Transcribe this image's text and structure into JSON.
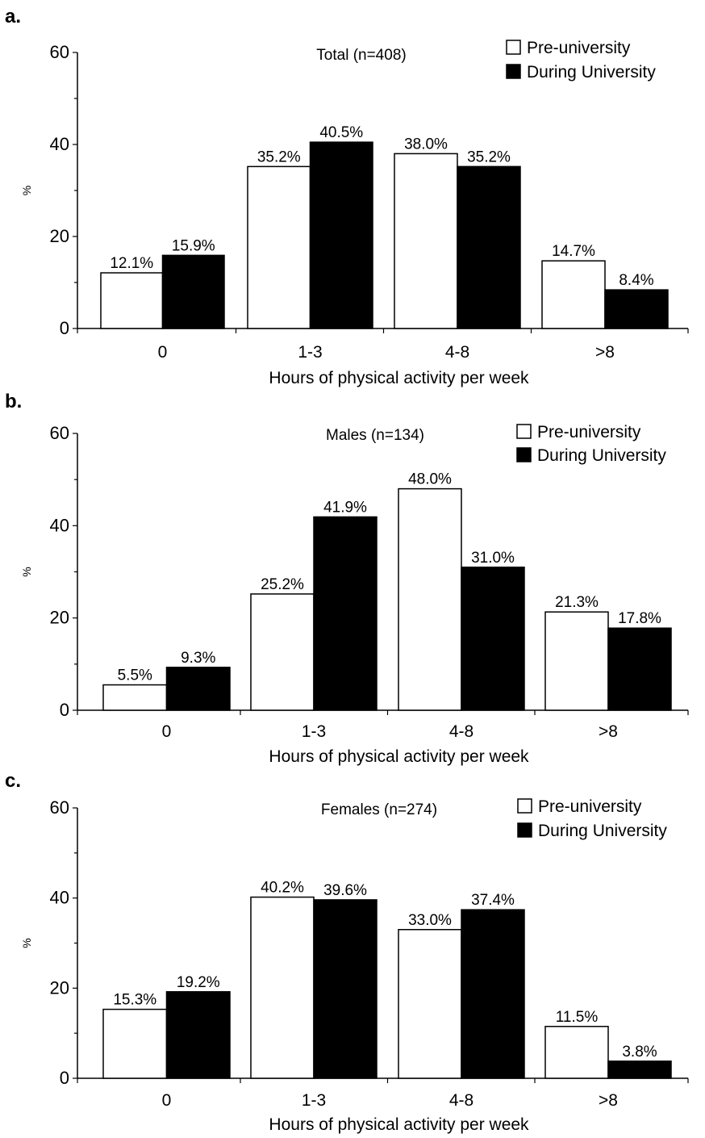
{
  "legend": {
    "pre_label": "Pre-university",
    "during_label": "During University",
    "pre_color": "#ffffff",
    "during_color": "#000000"
  },
  "chart_data": [
    {
      "panel": "a.",
      "type": "bar",
      "title": "Total (n=408)",
      "xlabel": "Hours of physical activity per week",
      "ylabel": "%",
      "ylim": [
        0,
        60
      ],
      "yticks": [
        0,
        20,
        40,
        60
      ],
      "categories": [
        "0",
        "1-3",
        "4-8",
        ">8"
      ],
      "series": [
        {
          "name": "Pre-university",
          "values": [
            12.1,
            35.2,
            38.0,
            14.7
          ],
          "labels": [
            "12.1%",
            "35.2%",
            "38.0%",
            "14.7%"
          ]
        },
        {
          "name": "During University",
          "values": [
            15.9,
            40.5,
            35.2,
            8.4
          ],
          "labels": [
            "15.9%",
            "40.5%",
            "35.2%",
            "8.4%"
          ]
        }
      ]
    },
    {
      "panel": "b.",
      "type": "bar",
      "title": "Males (n=134)",
      "xlabel": "Hours of physical activity per week",
      "ylabel": "%",
      "ylim": [
        0,
        60
      ],
      "yticks": [
        0,
        20,
        40,
        60
      ],
      "categories": [
        "0",
        "1-3",
        "4-8",
        ">8"
      ],
      "series": [
        {
          "name": "Pre-university",
          "values": [
            5.5,
            25.2,
            48.0,
            21.3
          ],
          "labels": [
            "5.5%",
            "25.2%",
            "48.0%",
            "21.3%"
          ]
        },
        {
          "name": "During University",
          "values": [
            9.3,
            41.9,
            31.0,
            17.8
          ],
          "labels": [
            "9.3%",
            "41.9%",
            "31.0%",
            "17.8%"
          ]
        }
      ]
    },
    {
      "panel": "c.",
      "type": "bar",
      "title": "Females (n=274)",
      "xlabel": "Hours of physical activity per week",
      "ylabel": "%",
      "ylim": [
        0,
        60
      ],
      "yticks": [
        0,
        20,
        40,
        60
      ],
      "categories": [
        "0",
        "1-3",
        "4-8",
        ">8"
      ],
      "series": [
        {
          "name": "Pre-university",
          "values": [
            15.3,
            40.2,
            33.0,
            11.5
          ],
          "labels": [
            "15.3%",
            "40.2%",
            "33.0%",
            "11.5%"
          ]
        },
        {
          "name": "During University",
          "values": [
            19.2,
            39.6,
            37.4,
            3.8
          ],
          "labels": [
            "19.2%",
            "39.6%",
            "37.4%",
            "3.8%"
          ]
        }
      ]
    }
  ]
}
